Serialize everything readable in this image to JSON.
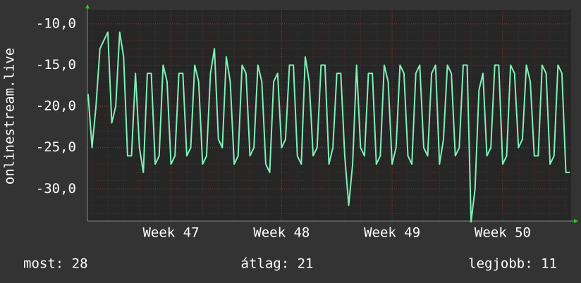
{
  "chart_data": {
    "type": "line",
    "y_label": "onlinestream.live",
    "x": [
      -126,
      -120,
      -114,
      -108,
      -102,
      -96,
      -90,
      -84,
      -78,
      -72,
      -66,
      -60,
      -54,
      -48,
      -42,
      -36,
      -30,
      -24,
      -18,
      -12,
      -6,
      0,
      6,
      12,
      18,
      24,
      30,
      36,
      42,
      48,
      54,
      60,
      66,
      72,
      78,
      84,
      90,
      96,
      102,
      108,
      114,
      120,
      126,
      132,
      138,
      144,
      150,
      156,
      162,
      168,
      174,
      180,
      186,
      192,
      198,
      204,
      210,
      216,
      222,
      228,
      234,
      240,
      246,
      252,
      258,
      264,
      270,
      276,
      282,
      288,
      294,
      300,
      306,
      312,
      318,
      324,
      330,
      336,
      342,
      348,
      354,
      360,
      366,
      372,
      378,
      384,
      390,
      396,
      402,
      408,
      414,
      420,
      426,
      432,
      438,
      444,
      450,
      456,
      462,
      468,
      474,
      480,
      486,
      492,
      498,
      504,
      510,
      516,
      522,
      528,
      534,
      540,
      546,
      552,
      558,
      564,
      570,
      576,
      582,
      588,
      594,
      600,
      606
    ],
    "series": [
      {
        "color": "#7ff0b8",
        "values": [
          -18.5,
          -25,
          -20,
          -13,
          -12,
          -11,
          -22,
          -20,
          -11,
          -14,
          -26,
          -26,
          -16,
          -25,
          -28,
          -16,
          -16,
          -27,
          -26,
          -15,
          -17,
          -27,
          -26,
          -16,
          -16,
          -26,
          -25,
          -15,
          -17,
          -27,
          -26,
          -16,
          -13,
          -24,
          -25,
          -14,
          -17,
          -27,
          -26,
          -15,
          -16,
          -26,
          -25,
          -15,
          -17,
          -27,
          -28,
          -17,
          -16,
          -25,
          -24,
          -15,
          -15,
          -26,
          -27,
          -14,
          -17,
          -26,
          -25,
          -15,
          -15,
          -27,
          -25,
          -16,
          -16,
          -26,
          -32,
          -27,
          -15,
          -25,
          -26,
          -16,
          -16,
          -27,
          -26,
          -15,
          -17,
          -27,
          -25,
          -15,
          -16,
          -26,
          -27,
          -16,
          -15,
          -25,
          -26,
          -16,
          -15,
          -27,
          -24,
          -15,
          -16,
          -26,
          -25,
          -15,
          -15,
          -34,
          -30,
          -18,
          -16,
          -26,
          -25,
          -15,
          -15,
          -27,
          -26,
          -15,
          -16,
          -25,
          -24,
          -15,
          -17,
          -26,
          -26,
          -15,
          -16,
          -27,
          -26,
          -15,
          -16,
          -28,
          -28
        ]
      }
    ],
    "xlim": [
      -127,
      608
    ],
    "xticks": [
      {
        "value": 0,
        "label": "Week 47"
      },
      {
        "value": 168,
        "label": "Week 48"
      },
      {
        "value": 336,
        "label": "Week 49"
      },
      {
        "value": 504,
        "label": "Week 50"
      }
    ],
    "ylim": [
      -33.9,
      -8.3
    ],
    "yticks": [
      {
        "value": -10,
        "label": "-10,0"
      },
      {
        "value": -15,
        "label": "-15,0"
      },
      {
        "value": -20,
        "label": "-20,0"
      },
      {
        "value": -25,
        "label": "-25,0"
      },
      {
        "value": -30,
        "label": "-30,0"
      }
    ],
    "grid": true,
    "stats": [
      "most: 28",
      "átlag: 21",
      "legjobb: 11"
    ]
  }
}
